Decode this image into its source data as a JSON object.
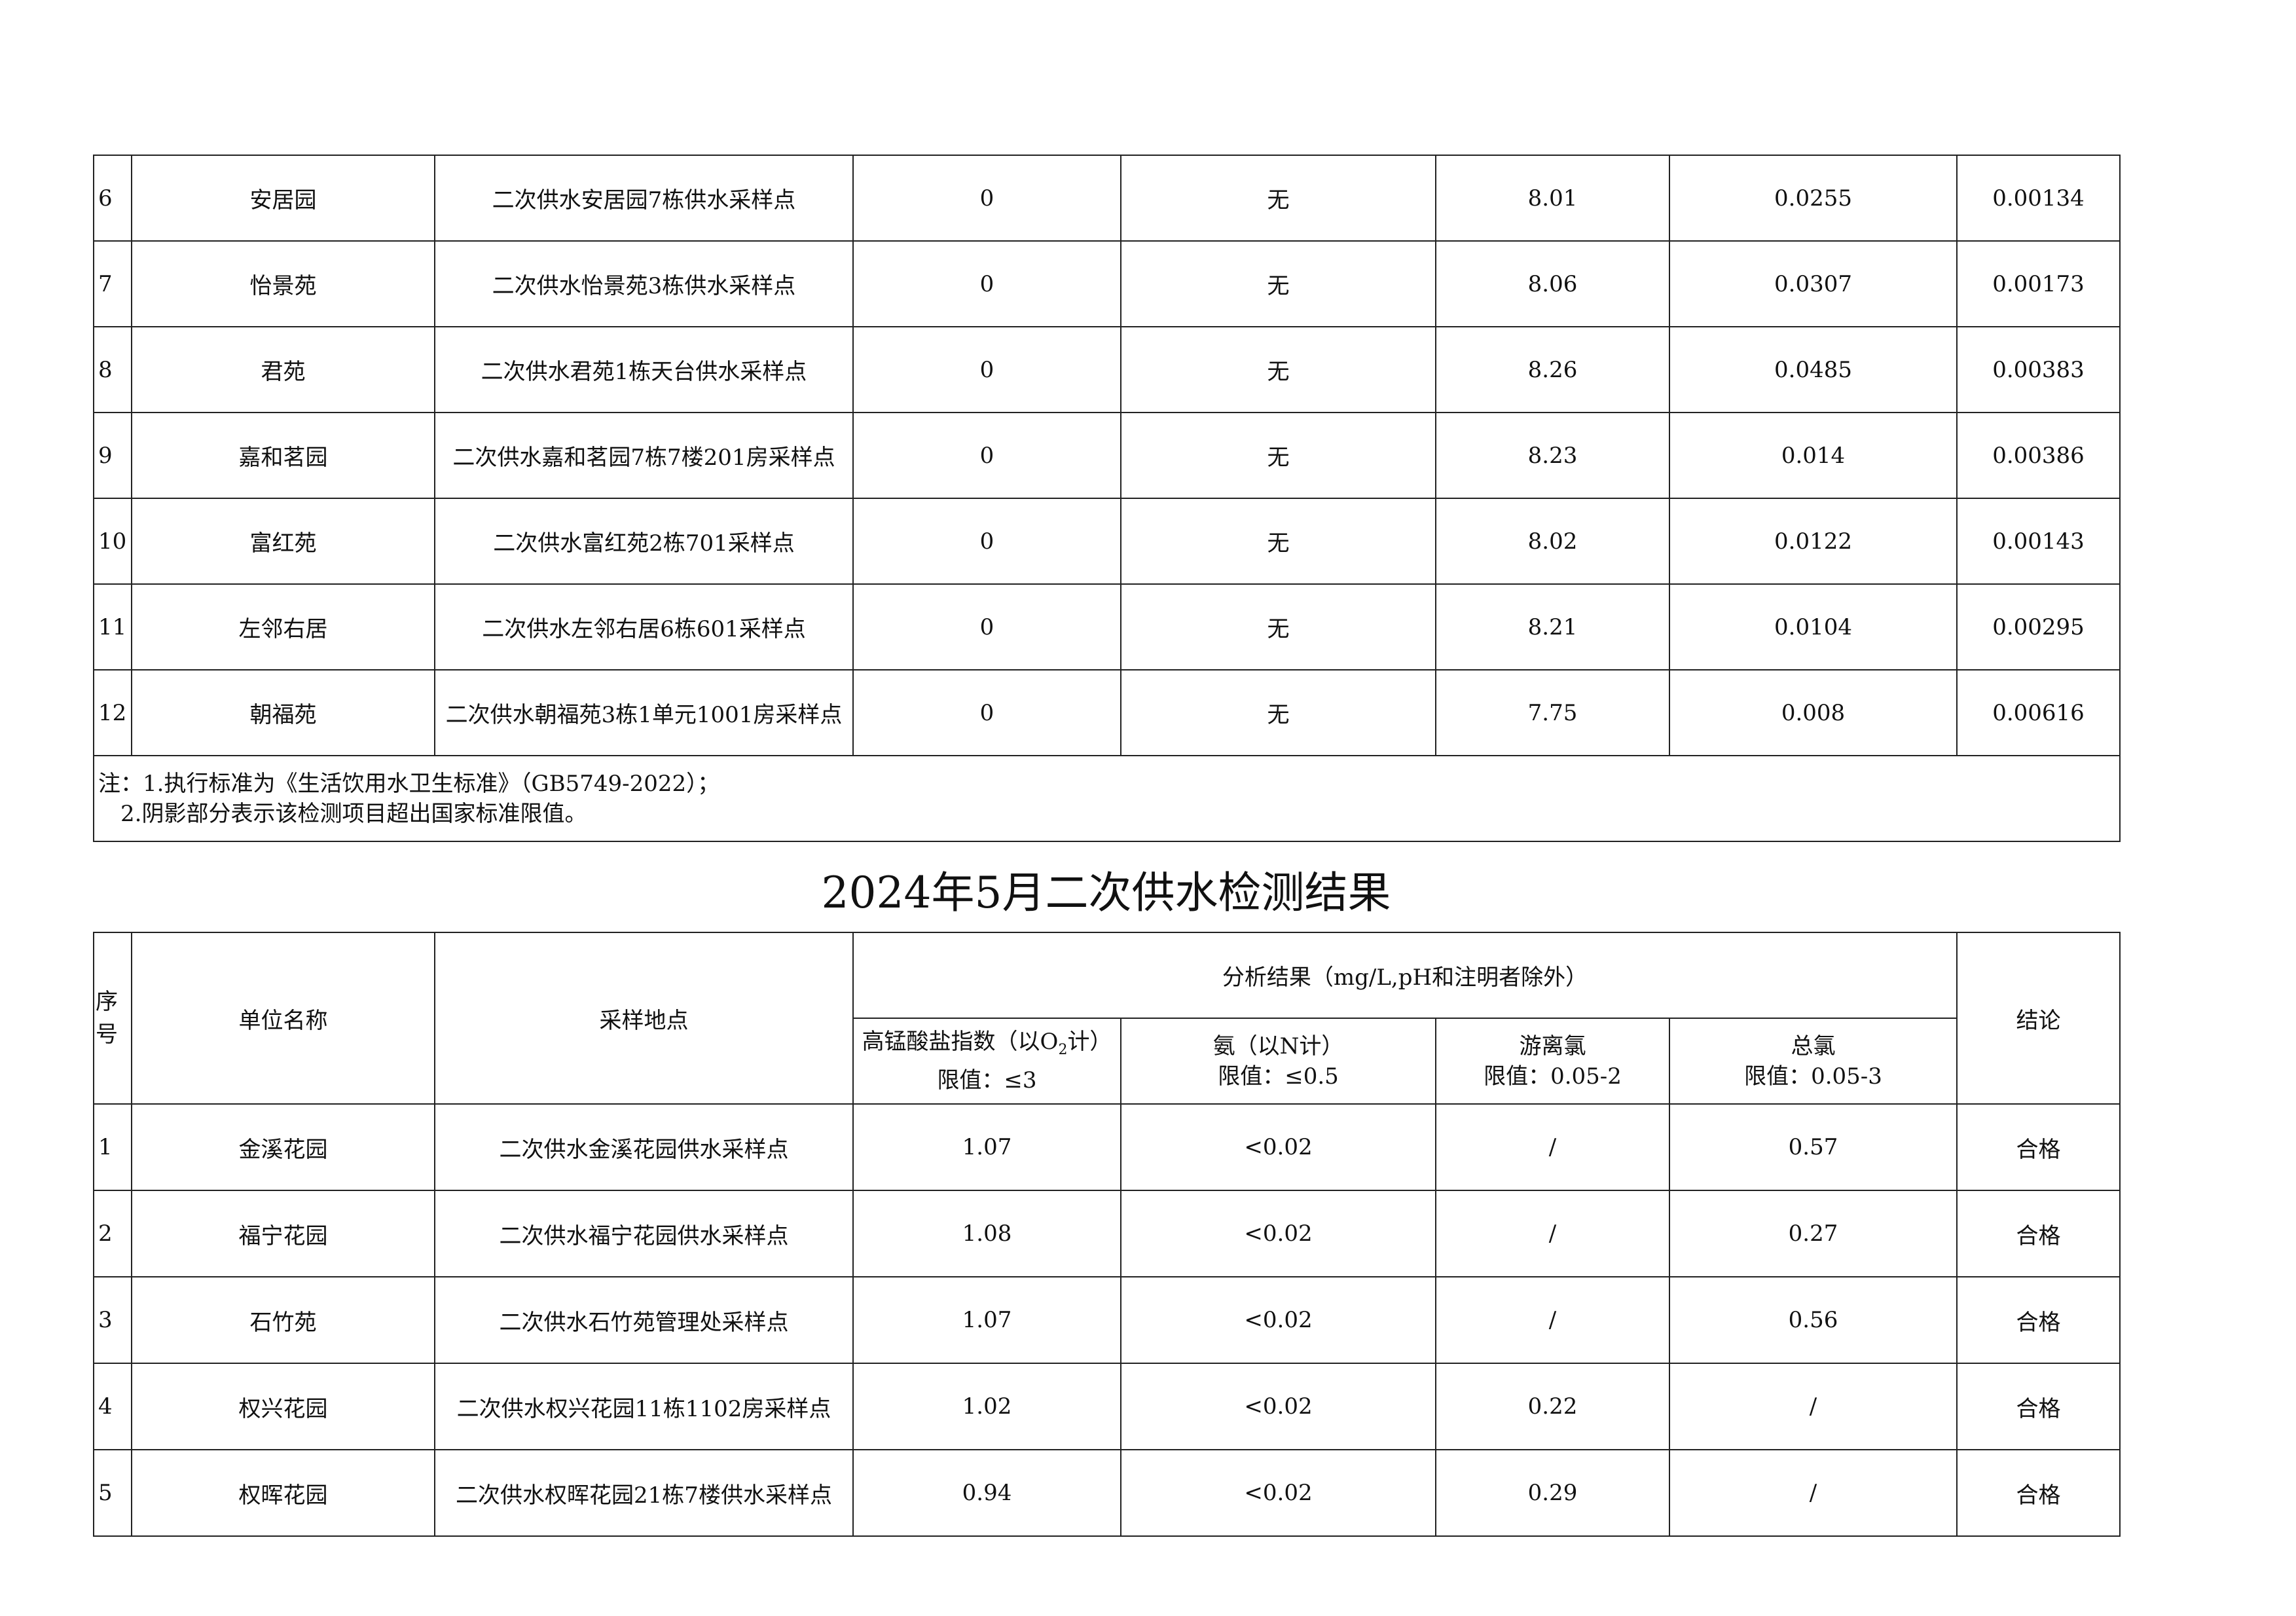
{
  "top_table": {
    "rows": [
      {
        "seq": "6",
        "unit": "安居园",
        "site": "二次供水安居园7栋供水采样点",
        "c1": "0",
        "c2": "无",
        "c3": "8.01",
        "c4": "0.0255",
        "c5": "0.00134"
      },
      {
        "seq": "7",
        "unit": "怡景苑",
        "site": "二次供水怡景苑3栋供水采样点",
        "c1": "0",
        "c2": "无",
        "c3": "8.06",
        "c4": "0.0307",
        "c5": "0.00173"
      },
      {
        "seq": "8",
        "unit": "君苑",
        "site": "二次供水君苑1栋天台供水采样点",
        "c1": "0",
        "c2": "无",
        "c3": "8.26",
        "c4": "0.0485",
        "c5": "0.00383"
      },
      {
        "seq": "9",
        "unit": "嘉和茗园",
        "site": "二次供水嘉和茗园7栋7楼201房采样点",
        "c1": "0",
        "c2": "无",
        "c3": "8.23",
        "c4": "0.014",
        "c5": "0.00386"
      },
      {
        "seq": "10",
        "unit": "富红苑",
        "site": "二次供水富红苑2栋701采样点",
        "c1": "0",
        "c2": "无",
        "c3": "8.02",
        "c4": "0.0122",
        "c5": "0.00143"
      },
      {
        "seq": "11",
        "unit": "左邻右居",
        "site": "二次供水左邻右居6栋601采样点",
        "c1": "0",
        "c2": "无",
        "c3": "8.21",
        "c4": "0.0104",
        "c5": "0.00295"
      },
      {
        "seq": "12",
        "unit": "朝福苑",
        "site": "二次供水朝福苑3栋1单元1001房采样点",
        "c1": "0",
        "c2": "无",
        "c3": "7.75",
        "c4": "0.008",
        "c5": "0.00616"
      }
    ],
    "note_line1": "注：1.执行标准为《生活饮用水卫生标准》（GB5749-2022）；",
    "note_line2": "　2.阴影部分表示该检测项目超出国家标准限值。"
  },
  "title": "2024年5月二次供水检测结果",
  "bottom_table": {
    "headers": {
      "seq": "序号",
      "unit": "单位名称",
      "site": "采样地点",
      "analysis": "分析结果（mg/L,pH和注明者除外）",
      "conclusion": "结论",
      "cod_name_a": "高锰酸盐指数（以O",
      "cod_sub": "2",
      "cod_name_b": "计）",
      "cod_limit": "限值：≤3",
      "ammonia_name": "氨（以N计）",
      "ammonia_limit": "限值：≤0.5",
      "free_cl_name": "游离氯",
      "free_cl_limit": "限值：0.05-2",
      "total_cl_name": "总氯",
      "total_cl_limit": "限值：0.05-3"
    },
    "rows": [
      {
        "seq": "1",
        "unit": "金溪花园",
        "site": "二次供水金溪花园供水采样点",
        "cod": "1.07",
        "ammonia": "<0.02",
        "free_cl": "/",
        "total_cl": "0.57",
        "conclusion": "合格"
      },
      {
        "seq": "2",
        "unit": "福宁花园",
        "site": "二次供水福宁花园供水采样点",
        "cod": "1.08",
        "ammonia": "<0.02",
        "free_cl": "/",
        "total_cl": "0.27",
        "conclusion": "合格"
      },
      {
        "seq": "3",
        "unit": "石竹苑",
        "site": "二次供水石竹苑管理处采样点",
        "cod": "1.07",
        "ammonia": "<0.02",
        "free_cl": "/",
        "total_cl": "0.56",
        "conclusion": "合格"
      },
      {
        "seq": "4",
        "unit": "权兴花园",
        "site": "二次供水权兴花园11栋1102房采样点",
        "cod": "1.02",
        "ammonia": "<0.02",
        "free_cl": "0.22",
        "total_cl": "/",
        "conclusion": "合格"
      },
      {
        "seq": "5",
        "unit": "权晖花园",
        "site": "二次供水权晖花园21栋7楼供水采样点",
        "cod": "0.94",
        "ammonia": "<0.02",
        "free_cl": "0.29",
        "total_cl": "/",
        "conclusion": "合格"
      }
    ]
  }
}
